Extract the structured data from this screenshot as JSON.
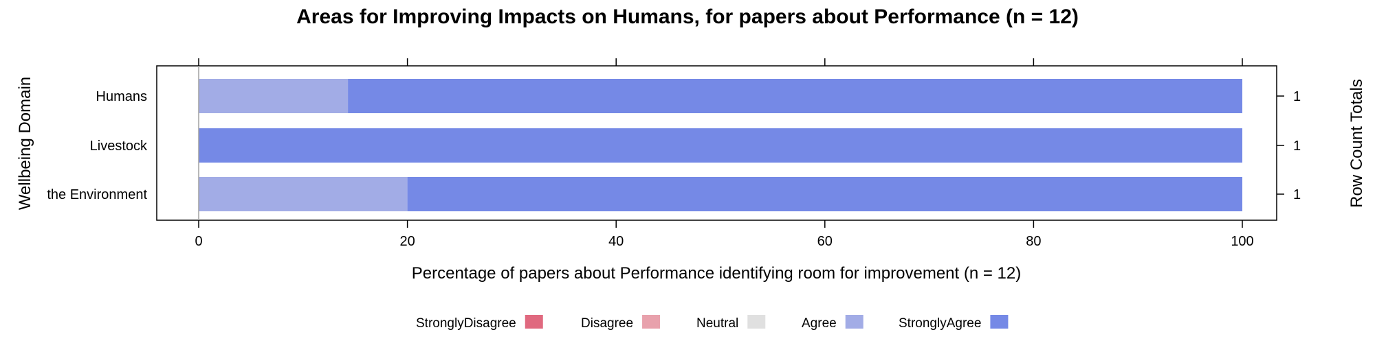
{
  "chart_data": {
    "type": "bar",
    "orientation": "horizontal",
    "stacked": true,
    "title": "Areas for Improving Impacts on Humans, for papers about Performance (n = 12)",
    "xlabel": "Percentage of papers about Performance identifying room for improvement (n = 12)",
    "ylabel": "Wellbeing Domain",
    "y2label": "Row Count Totals",
    "xlim": [
      0,
      100
    ],
    "xticks": [
      0,
      20,
      40,
      60,
      80,
      100
    ],
    "xtick_labels": [
      "0",
      "20",
      "40",
      "60",
      "80",
      "100"
    ],
    "categories": [
      "Humans",
      "Livestock",
      "the Environment"
    ],
    "row_totals": [
      "1",
      "1",
      "1"
    ],
    "series": [
      {
        "name": "StronglyDisagree",
        "color": "#E0697F",
        "values": [
          0,
          0,
          0
        ]
      },
      {
        "name": "Disagree",
        "color": "#E8A1AC",
        "values": [
          0,
          0,
          0
        ]
      },
      {
        "name": "Neutral",
        "color": "#E0E0E0",
        "values": [
          0,
          0,
          0
        ]
      },
      {
        "name": "Agree",
        "color": "#A2ACE6",
        "values": [
          14.3,
          0,
          20
        ]
      },
      {
        "name": "StronglyAgree",
        "color": "#7589E6",
        "values": [
          85.7,
          100,
          80
        ]
      }
    ],
    "legend_position": "bottom",
    "grid": false
  }
}
